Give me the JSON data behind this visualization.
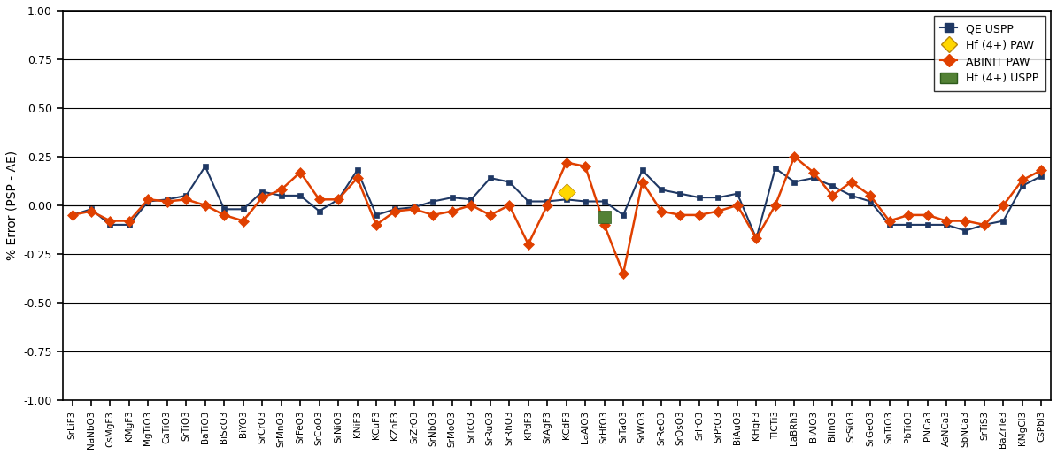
{
  "labels": [
    "SrLiF3",
    "NaNbO3",
    "CsMgF3",
    "KMgF3",
    "MgTiO3",
    "CaTiO3",
    "SrTiO3",
    "BaTiO3",
    "BiScO3",
    "BiYO3",
    "SrCrO3",
    "SrMnO3",
    "SrFeO3",
    "SrCoO3",
    "SrNiO3",
    "KNiF3",
    "KCuF3",
    "KZnF3",
    "SrZrO3",
    "SrNbO3",
    "SrMoO3",
    "SrTcO3",
    "SrRuO3",
    "SrRhO3",
    "KPdF3",
    "SrAgF3",
    "KCdF3",
    "LaAlO3",
    "SrHfO3",
    "SrTaO3",
    "SrWO3",
    "SrReO3",
    "SrOsO3",
    "SrIrO3",
    "SrPtO3",
    "BiAuO3",
    "KHgF3",
    "TlCTi3",
    "LaBRh3",
    "BiAlO3",
    "BiInO3",
    "SrSiO3",
    "SrGeO3",
    "SnTiO3",
    "PbTiO3",
    "PNCa3",
    "AsNCa3",
    "SbNCa3",
    "SrTiS3",
    "BaZrTe3",
    "KMgCl3",
    "CsPbI3"
  ],
  "qe_uspp": [
    -0.05,
    -0.02,
    -0.1,
    -0.1,
    0.02,
    0.03,
    0.05,
    0.2,
    -0.02,
    -0.02,
    0.07,
    0.05,
    0.05,
    -0.03,
    0.03,
    0.18,
    -0.05,
    -0.02,
    -0.01,
    0.02,
    0.04,
    0.03,
    0.14,
    0.12,
    0.02,
    0.02,
    0.03,
    0.02,
    0.02,
    -0.05,
    0.18,
    0.08,
    0.06,
    0.04,
    0.04,
    0.06,
    -0.17,
    0.19,
    0.12,
    0.14,
    0.1,
    0.05,
    0.02,
    -0.1,
    -0.1,
    -0.1,
    -0.1,
    -0.13,
    -0.1,
    -0.08,
    0.1,
    0.15
  ],
  "abinit_paw": [
    -0.05,
    -0.03,
    -0.08,
    -0.08,
    0.03,
    0.02,
    0.03,
    0.0,
    -0.05,
    -0.08,
    0.04,
    0.08,
    0.17,
    0.03,
    0.03,
    0.14,
    -0.1,
    -0.03,
    -0.02,
    -0.05,
    -0.03,
    0.0,
    -0.05,
    0.0,
    -0.2,
    0.0,
    0.22,
    0.2,
    -0.1,
    -0.35,
    0.12,
    -0.03,
    -0.05,
    -0.05,
    -0.03,
    0.0,
    -0.17,
    0.0,
    0.25,
    0.17,
    0.05,
    0.12,
    0.05,
    -0.08,
    -0.05,
    -0.05,
    -0.08,
    -0.08,
    -0.1,
    0.0,
    0.13,
    0.18
  ],
  "hf_paw_idx": 26,
  "hf_paw_val": 0.07,
  "hf_uspp_idx": 28,
  "hf_uspp_val": -0.06,
  "ylabel": "% Error (PSP - AE)",
  "ylim": [
    -1.0,
    1.0
  ],
  "yticks": [
    -1.0,
    -0.75,
    -0.5,
    -0.25,
    0.0,
    0.25,
    0.5,
    0.75,
    1.0
  ],
  "bg_color": "#ffffff",
  "qe_color": "#1F3864",
  "abinit_color": "#E04000",
  "hf_paw_color": "#FFD700",
  "hf_uspp_color": "#538135",
  "grid_color": "#000000",
  "spine_color": "#000000"
}
